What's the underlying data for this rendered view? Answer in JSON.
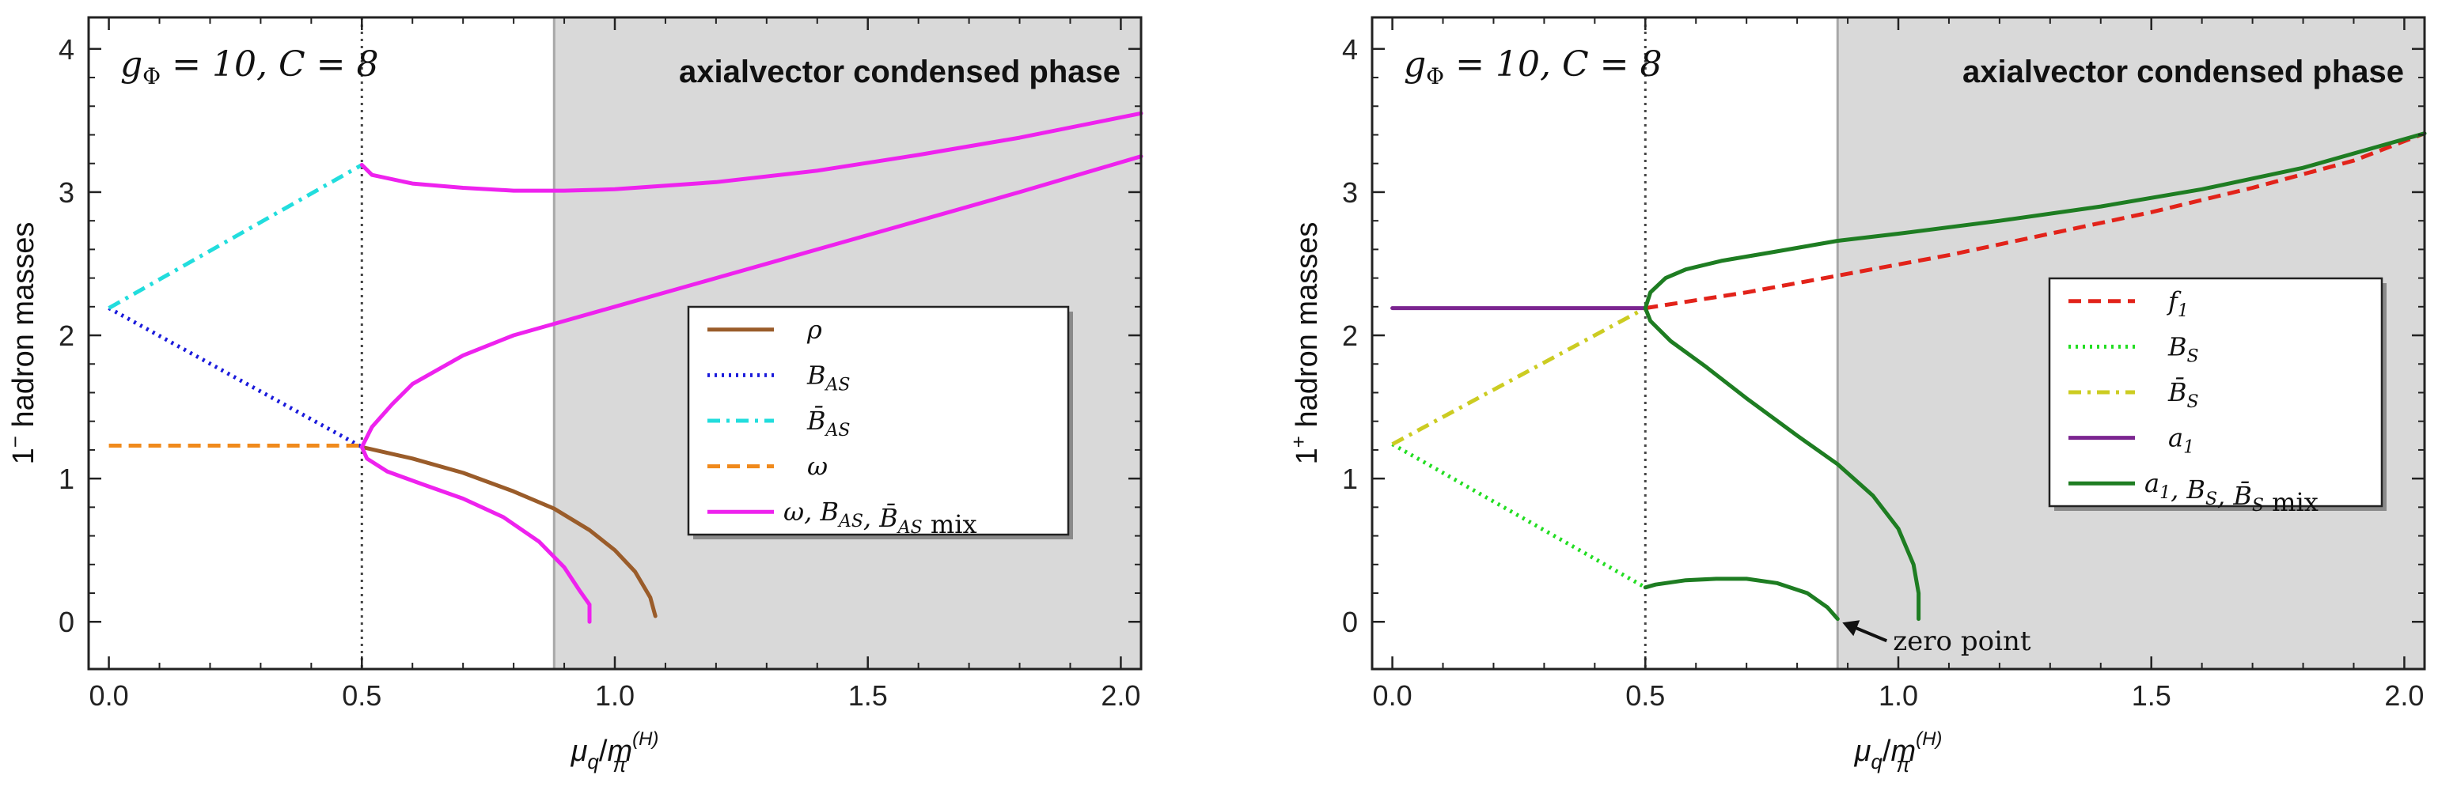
{
  "figure": {
    "panels": [
      "left",
      "right"
    ]
  },
  "chart_data": [
    {
      "type": "line",
      "title": "",
      "annotation": "g_Φ = 10, C = 8",
      "annotation_parts": {
        "g": "g",
        "sub": "Φ",
        "rest": " = 10, C = 8"
      },
      "phase_label": "axialvector condensed phase",
      "xlabel": {
        "base": "μ",
        "sub": "q",
        "slash": "/",
        "m": "m",
        "msub": "π",
        "msup": "(H)"
      },
      "ylabel": {
        "prefix": "1",
        "sup": "−",
        "rest": " hadron masses"
      },
      "xlim": [
        -0.04,
        2.04
      ],
      "ylim": [
        -0.33,
        4.22
      ],
      "xticks": [
        0.0,
        0.5,
        1.0,
        1.5,
        2.0
      ],
      "xtick_labels": [
        "0.0",
        "0.5",
        "1.0",
        "1.5",
        "2.0"
      ],
      "yticks": [
        0,
        1,
        2,
        3,
        4
      ],
      "ytick_labels": [
        "0",
        "1",
        "2",
        "3",
        "4"
      ],
      "vline_dotted": 0.5,
      "condensed_from": 0.88,
      "colors": {
        "rho": "#9a5c2a",
        "bas": "#1a1adb",
        "bbar": "#22dddd",
        "omega": "#f08a1c",
        "mix": "#ee22ee"
      },
      "series": [
        {
          "name": "ρ",
          "color": "#9a5c2a",
          "style": "solid",
          "x": [
            0.5,
            0.6,
            0.7,
            0.8,
            0.88,
            0.95,
            1.0,
            1.04,
            1.07,
            1.08
          ],
          "y": [
            1.22,
            1.14,
            1.04,
            0.91,
            0.79,
            0.64,
            0.5,
            0.35,
            0.17,
            0.04
          ]
        },
        {
          "name": "B_AS",
          "color": "#1a1adb",
          "style": "dotted",
          "x": [
            0.0,
            0.5
          ],
          "y": [
            2.19,
            1.22
          ]
        },
        {
          "name": "B̄_AS",
          "color": "#22dddd",
          "style": "dashdot",
          "x": [
            0.0,
            0.5
          ],
          "y": [
            2.19,
            3.19
          ]
        },
        {
          "name": "ω",
          "color": "#f08a1c",
          "style": "dashed",
          "x": [
            0.0,
            0.5
          ],
          "y": [
            1.23,
            1.23
          ]
        },
        {
          "name": "ω, B_AS, B̄_AS mix (upper)",
          "color": "#ee22ee",
          "style": "solid",
          "x": [
            0.5,
            0.52,
            0.6,
            0.7,
            0.8,
            0.9,
            1.0,
            1.2,
            1.4,
            1.6,
            1.8,
            2.04
          ],
          "y": [
            3.19,
            3.12,
            3.06,
            3.03,
            3.01,
            3.01,
            3.02,
            3.07,
            3.15,
            3.26,
            3.38,
            3.55
          ]
        },
        {
          "name": "ω, B_AS, B̄_AS mix (middle)",
          "color": "#ee22ee",
          "style": "solid",
          "x": [
            0.5,
            0.52,
            0.56,
            0.6,
            0.7,
            0.8,
            0.9,
            1.0,
            1.2,
            1.4,
            1.6,
            1.8,
            2.04
          ],
          "y": [
            1.22,
            1.36,
            1.52,
            1.66,
            1.86,
            2.0,
            2.1,
            2.2,
            2.4,
            2.6,
            2.8,
            3.0,
            3.25
          ]
        },
        {
          "name": "ω, B_AS, B̄_AS mix (lower)",
          "color": "#ee22ee",
          "style": "solid",
          "x": [
            0.5,
            0.51,
            0.55,
            0.62,
            0.7,
            0.78,
            0.85,
            0.9,
            0.93,
            0.95,
            0.95
          ],
          "y": [
            1.22,
            1.14,
            1.05,
            0.96,
            0.86,
            0.73,
            0.56,
            0.38,
            0.22,
            0.12,
            0.0
          ]
        }
      ],
      "legend": {
        "placement": "center-right",
        "entries": [
          {
            "label": "ρ",
            "color": "#9a5c2a",
            "style": "solid"
          },
          {
            "label": "B_AS",
            "color": "#1a1adb",
            "style": "dotted"
          },
          {
            "label": "B̄_AS",
            "color": "#22dddd",
            "style": "dashdot"
          },
          {
            "label": "ω",
            "color": "#f08a1c",
            "style": "dashed"
          },
          {
            "label": "ω, B_AS, B̄_AS mix",
            "color": "#ee22ee",
            "style": "solid"
          }
        ]
      }
    },
    {
      "type": "line",
      "title": "",
      "annotation": "g_Φ = 10, C = 8",
      "annotation_parts": {
        "g": "g",
        "sub": "Φ",
        "rest": " = 10, C = 8"
      },
      "phase_label": "axialvector condensed phase",
      "zero_point_label": "zero point",
      "xlabel": {
        "base": "μ",
        "sub": "q",
        "slash": "/",
        "m": "m",
        "msub": "π",
        "msup": "(H)"
      },
      "ylabel": {
        "prefix": "1",
        "sup": "+",
        "rest": " hadron masses"
      },
      "xlim": [
        -0.04,
        2.04
      ],
      "ylim": [
        -0.33,
        4.22
      ],
      "xticks": [
        0.0,
        0.5,
        1.0,
        1.5,
        2.0
      ],
      "xtick_labels": [
        "0.0",
        "0.5",
        "1.0",
        "1.5",
        "2.0"
      ],
      "yticks": [
        0,
        1,
        2,
        3,
        4
      ],
      "ytick_labels": [
        "0",
        "1",
        "2",
        "3",
        "4"
      ],
      "vline_dotted": 0.5,
      "condensed_from": 0.88,
      "colors": {
        "f1": "#e2231a",
        "bs": "#22dd22",
        "bsbar": "#cccc22",
        "a1": "#7b2590",
        "mix": "#1e7d22"
      },
      "series": [
        {
          "name": "f_1",
          "color": "#e2231a",
          "style": "dashed",
          "x": [
            0.5,
            0.7,
            0.9,
            1.1,
            1.3,
            1.5,
            1.7,
            1.9,
            2.04
          ],
          "y": [
            2.19,
            2.3,
            2.43,
            2.56,
            2.71,
            2.86,
            3.03,
            3.22,
            3.41
          ]
        },
        {
          "name": "B_S",
          "color": "#22dd22",
          "style": "dotted",
          "x": [
            0.0,
            0.5
          ],
          "y": [
            1.24,
            0.24
          ]
        },
        {
          "name": "B̄_S",
          "color": "#cccc22",
          "style": "dashdot",
          "x": [
            0.0,
            0.5
          ],
          "y": [
            1.24,
            2.19
          ]
        },
        {
          "name": "a_1",
          "color": "#7b2590",
          "style": "solid",
          "x": [
            0.0,
            0.5
          ],
          "y": [
            2.19,
            2.19
          ]
        },
        {
          "name": "a_1, B_S, B̄_S mix (upper)",
          "color": "#1e7d22",
          "style": "solid",
          "x": [
            0.5,
            0.51,
            0.54,
            0.58,
            0.65,
            0.75,
            0.88,
            1.0,
            1.2,
            1.4,
            1.6,
            1.8,
            2.04
          ],
          "y": [
            2.19,
            2.3,
            2.4,
            2.46,
            2.52,
            2.58,
            2.66,
            2.71,
            2.8,
            2.9,
            3.02,
            3.17,
            3.41
          ]
        },
        {
          "name": "a_1, B_S, B̄_S mix (middle)",
          "color": "#1e7d22",
          "style": "solid",
          "x": [
            0.5,
            0.51,
            0.55,
            0.62,
            0.7,
            0.8,
            0.88,
            0.95,
            1.0,
            1.03,
            1.04,
            1.04
          ],
          "y": [
            2.19,
            2.1,
            1.96,
            1.78,
            1.56,
            1.3,
            1.1,
            0.88,
            0.65,
            0.4,
            0.2,
            0.02
          ]
        },
        {
          "name": "a_1, B_S, B̄_S mix (lower)",
          "color": "#1e7d22",
          "style": "solid",
          "x": [
            0.5,
            0.52,
            0.58,
            0.64,
            0.7,
            0.76,
            0.82,
            0.86,
            0.88
          ],
          "y": [
            0.24,
            0.26,
            0.29,
            0.3,
            0.3,
            0.27,
            0.2,
            0.1,
            0.02
          ]
        }
      ],
      "legend": {
        "placement": "center-right",
        "entries": [
          {
            "label": "f_1",
            "color": "#e2231a",
            "style": "dashed"
          },
          {
            "label": "B_S",
            "color": "#22dd22",
            "style": "dotted"
          },
          {
            "label": "B̄_S",
            "color": "#cccc22",
            "style": "dashdot"
          },
          {
            "label": "a_1",
            "color": "#7b2590",
            "style": "solid"
          },
          {
            "label": "a_1, B_S, B̄_S mix",
            "color": "#1e7d22",
            "style": "solid"
          }
        ]
      }
    }
  ]
}
